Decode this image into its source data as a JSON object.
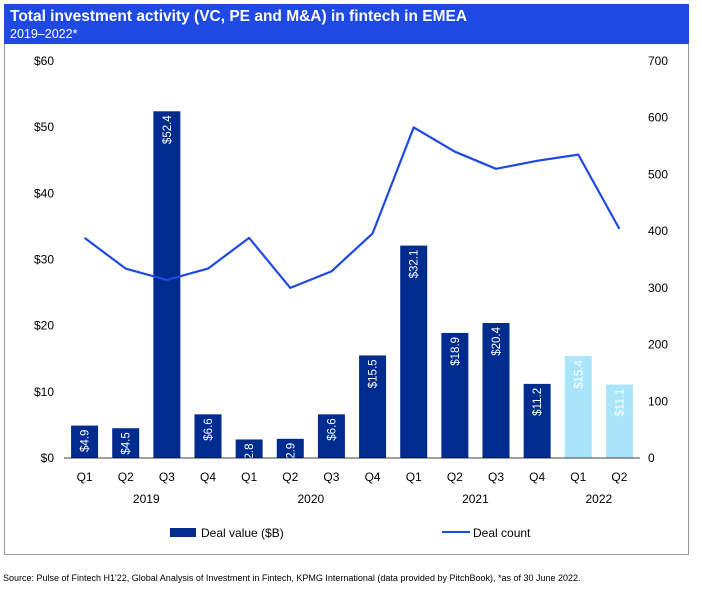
{
  "header": {
    "title": "Total investment activity (VC, PE and M&A) in fintech in EMEA",
    "subtitle": "2019–2022*"
  },
  "colors": {
    "header_bg": "#1e49e2",
    "bar": "#002b8f",
    "bar_highlight": "#a9e6fb",
    "line": "#1e49e2"
  },
  "chart_data": {
    "type": "bar",
    "categories": [
      "Q1",
      "Q2",
      "Q3",
      "Q4",
      "Q1",
      "Q2",
      "Q3",
      "Q4",
      "Q1",
      "Q2",
      "Q3",
      "Q4",
      "Q1",
      "Q2"
    ],
    "years": [
      {
        "label": "2019",
        "start": 0,
        "end": 3
      },
      {
        "label": "2020",
        "start": 4,
        "end": 7
      },
      {
        "label": "2021",
        "start": 8,
        "end": 11
      },
      {
        "label": "2022",
        "start": 12,
        "end": 13
      }
    ],
    "series": [
      {
        "name": "Deal value ($B)",
        "type": "bar",
        "axis": "left",
        "values": [
          4.9,
          4.5,
          52.4,
          6.6,
          2.8,
          2.9,
          6.6,
          15.5,
          32.1,
          18.9,
          20.4,
          11.2,
          15.4,
          11.1
        ],
        "labels": [
          "$4.9",
          "$4.5",
          "$52.4",
          "$6.6",
          "$2.8",
          "$2.9",
          "$6.6",
          "$15.5",
          "$32.1",
          "$18.9",
          "$20.4",
          "$11.2",
          "$15.4",
          "$11.1"
        ],
        "highlight_from_index": 12
      },
      {
        "name": "Deal count",
        "type": "line",
        "axis": "right",
        "values": [
          388,
          334,
          314,
          334,
          388,
          300,
          329,
          396,
          583,
          540,
          510,
          524,
          535,
          404
        ]
      }
    ],
    "y_left": {
      "ticks": [
        "$0",
        "$10",
        "$20",
        "$30",
        "$40",
        "$50",
        "$60"
      ],
      "range": [
        0,
        60
      ]
    },
    "y_right": {
      "ticks": [
        "0",
        "100",
        "200",
        "300",
        "400",
        "500",
        "600",
        "700"
      ],
      "range": [
        0,
        700
      ]
    },
    "grid": false,
    "legend_position": "bottom"
  },
  "source_note": "Source: Pulse of Fintech H1'22, Global Analysis of Investment in Fintech, KPMG International (data provided by PitchBook), *as of 30 June 2022."
}
